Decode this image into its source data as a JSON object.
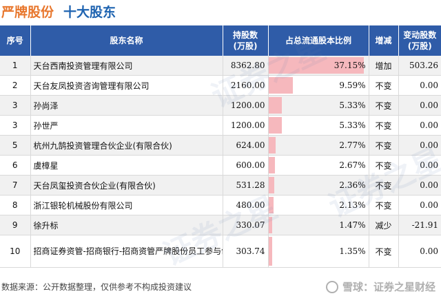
{
  "header": {
    "stock_name": "严牌股份",
    "subtitle": "十大股东"
  },
  "table": {
    "columns": [
      "序号",
      "股东名称",
      "持股数\n(万股)",
      "占总流通股本比例",
      "增减",
      "变动股数\n(万股)"
    ],
    "rows": [
      {
        "index": "1",
        "name": "天台西南投资管理有限公司",
        "shares": "8362.80",
        "ratio_text": "37.15%",
        "ratio": 37.15,
        "change": "增加",
        "change_type": "increase",
        "change_shares": "503.26"
      },
      {
        "index": "2",
        "name": "天台友凤投资咨询管理有限公司",
        "shares": "2160.00",
        "ratio_text": "9.59%",
        "ratio": 9.59,
        "change": "不变",
        "change_type": "none",
        "change_shares": "0.00"
      },
      {
        "index": "3",
        "name": "孙尚泽",
        "shares": "1200.00",
        "ratio_text": "5.33%",
        "ratio": 5.33,
        "change": "不变",
        "change_type": "none",
        "change_shares": "0.00"
      },
      {
        "index": "3",
        "name": "孙世严",
        "shares": "1200.00",
        "ratio_text": "5.33%",
        "ratio": 5.33,
        "change": "不变",
        "change_type": "none",
        "change_shares": "0.00"
      },
      {
        "index": "5",
        "name": "杭州九鹄投资管理合伙企业(有限合伙)",
        "shares": "624.00",
        "ratio_text": "2.77%",
        "ratio": 2.77,
        "change": "不变",
        "change_type": "none",
        "change_shares": "0.00"
      },
      {
        "index": "6",
        "name": "虞樟星",
        "shares": "600.00",
        "ratio_text": "2.67%",
        "ratio": 2.67,
        "change": "不变",
        "change_type": "none",
        "change_shares": "0.00"
      },
      {
        "index": "7",
        "name": "天台凤玺投资合伙企业(有限合伙)",
        "shares": "531.28",
        "ratio_text": "2.36%",
        "ratio": 2.36,
        "change": "不变",
        "change_type": "none",
        "change_shares": "0.00"
      },
      {
        "index": "8",
        "name": "浙江银轮机械股份有限公司",
        "shares": "480.00",
        "ratio_text": "2.13%",
        "ratio": 2.13,
        "change": "不变",
        "change_type": "none",
        "change_shares": "0.00"
      },
      {
        "index": "9",
        "name": "徐升标",
        "shares": "330.07",
        "ratio_text": "1.47%",
        "ratio": 1.47,
        "change": "减少",
        "change_type": "decrease",
        "change_shares": "-21.91"
      },
      {
        "index": "10",
        "name": "招商证券资管-招商银行-招商资管严牌股份员工参与创业板战略配售集合资产管理计划",
        "shares": "303.74",
        "ratio_text": "1.35%",
        "ratio": 1.35,
        "change": "不变",
        "change_type": "none",
        "change_shares": "0.00"
      }
    ]
  },
  "watermark": "证券之星",
  "footer": {
    "source": "数据来源：公开数据整理，仅供参考不构成投资建议"
  },
  "brand": {
    "text": "雪球：证券之星财经"
  },
  "colors": {
    "header_bg": "#2f5ca8",
    "bar": "#f6b8bd",
    "increase": "#e02020",
    "decrease": "#1a9a2a",
    "stock_name": "#e8772d",
    "subtitle": "#1e63b0"
  }
}
